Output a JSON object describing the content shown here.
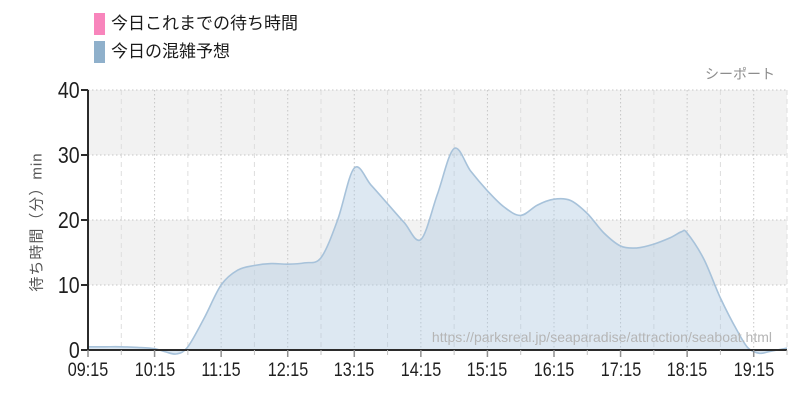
{
  "legend": {
    "items": [
      {
        "label": "今日これまでの待ち時間",
        "color": "#f885bc"
      },
      {
        "label": "今日の混雑予想",
        "color": "#8fb0cb"
      }
    ]
  },
  "chart_data": {
    "type": "area",
    "title": "シーポート",
    "ylabel": "待ち時間（分）min",
    "watermark": "https://parksreal.jp/seaparadise/attraction/seaboat.html",
    "grid": true,
    "legend_position": "top-left",
    "ylim": [
      0,
      40
    ],
    "yticks": [
      0,
      10,
      20,
      30,
      40
    ],
    "bands": [
      [
        10,
        20
      ],
      [
        30,
        40
      ]
    ],
    "band_color": "#f2f2f2",
    "x_domain_minutes": [
      0,
      630
    ],
    "xticks": [
      {
        "label": "09:15",
        "min": 0
      },
      {
        "label": "10:15",
        "min": 60
      },
      {
        "label": "11:15",
        "min": 120
      },
      {
        "label": "12:15",
        "min": 180
      },
      {
        "label": "13:15",
        "min": 240
      },
      {
        "label": "14:15",
        "min": 300
      },
      {
        "label": "15:15",
        "min": 360
      },
      {
        "label": "16:15",
        "min": 420
      },
      {
        "label": "17:15",
        "min": 480
      },
      {
        "label": "18:15",
        "min": 540
      },
      {
        "label": "19:15",
        "min": 600
      }
    ],
    "x_minor_minutes": [
      30,
      90,
      150,
      210,
      270,
      330,
      390,
      450,
      510,
      570,
      630
    ],
    "series": [
      {
        "name": "今日これまでの待ち時間",
        "stroke": "#f885bc",
        "points": []
      },
      {
        "name": "今日の混雑予想",
        "stroke": "#a7c2da",
        "fill": "rgba(174,199,223,0.42)",
        "points": [
          [
            0,
            0.5
          ],
          [
            15,
            0.5
          ],
          [
            30,
            0.5
          ],
          [
            45,
            0.4
          ],
          [
            60,
            0.2
          ],
          [
            70,
            -0.3
          ],
          [
            80,
            -0.6
          ],
          [
            90,
            0.5
          ],
          [
            105,
            5
          ],
          [
            120,
            10
          ],
          [
            135,
            12.3
          ],
          [
            150,
            13
          ],
          [
            165,
            13.3
          ],
          [
            180,
            13.2
          ],
          [
            195,
            13.4
          ],
          [
            210,
            14.2
          ],
          [
            225,
            20
          ],
          [
            240,
            28
          ],
          [
            255,
            25.4
          ],
          [
            270,
            22.5
          ],
          [
            285,
            19.6
          ],
          [
            300,
            17
          ],
          [
            315,
            24
          ],
          [
            330,
            31
          ],
          [
            345,
            27.5
          ],
          [
            360,
            24.5
          ],
          [
            375,
            22
          ],
          [
            390,
            20.7
          ],
          [
            405,
            22.3
          ],
          [
            420,
            23.2
          ],
          [
            435,
            23
          ],
          [
            450,
            21
          ],
          [
            465,
            18
          ],
          [
            480,
            16
          ],
          [
            495,
            15.7
          ],
          [
            510,
            16.3
          ],
          [
            525,
            17.3
          ],
          [
            535,
            18.2
          ],
          [
            540,
            18
          ],
          [
            555,
            14
          ],
          [
            570,
            8
          ],
          [
            585,
            3
          ],
          [
            595,
            0.3
          ],
          [
            605,
            -0.5
          ],
          [
            615,
            -0.2
          ],
          [
            630,
            0.3
          ]
        ]
      }
    ]
  }
}
